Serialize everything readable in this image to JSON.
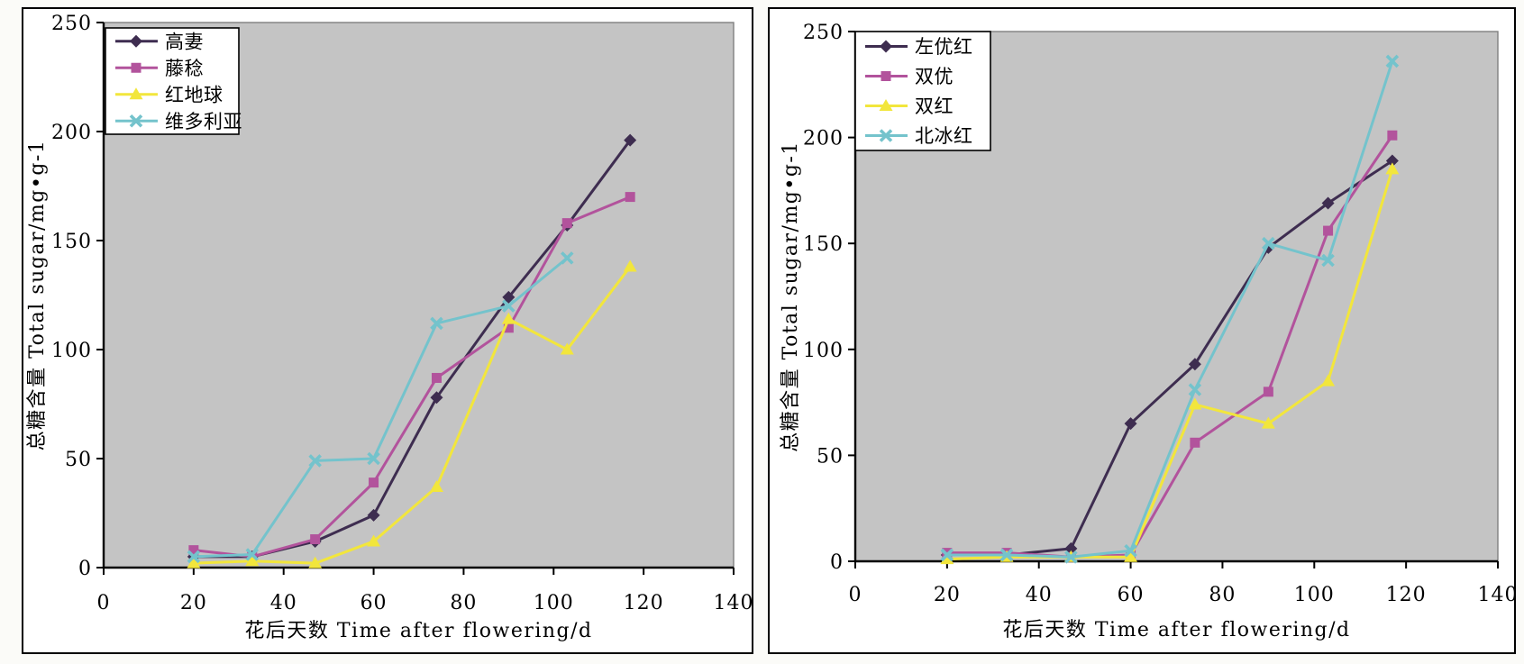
{
  "page": {
    "background": "#FBFBF8",
    "panel_border_color": "#000000",
    "panel_background": "#FFFFFF"
  },
  "chart_data": [
    {
      "type": "line",
      "panel": "left",
      "title": "",
      "xlabel": "花后天数 Time after flowering/d",
      "ylabel": "总糖含量 Total sugar/mg•g-1",
      "xlim": [
        0,
        140
      ],
      "ylim": [
        0,
        250
      ],
      "x_ticks": [
        0,
        20,
        40,
        60,
        80,
        100,
        120,
        140
      ],
      "y_ticks": [
        0,
        50,
        100,
        150,
        200,
        250
      ],
      "grid": false,
      "legend_position": "top-left",
      "plot_bg": "#C4C4C4",
      "plot_border_color": "#7F7F7F",
      "axis_color": "#000000",
      "x": [
        20,
        33,
        47,
        60,
        74,
        90,
        103,
        117
      ],
      "series": [
        {
          "name": "高妻",
          "marker": "diamond",
          "color": "#3E2D50",
          "values": [
            5,
            5,
            12,
            24,
            78,
            124,
            157,
            196
          ]
        },
        {
          "name": "藤稔",
          "marker": "square",
          "color": "#B2539C",
          "values": [
            8,
            5,
            13,
            39,
            87,
            110,
            158,
            170
          ]
        },
        {
          "name": "红地球",
          "marker": "triangle",
          "color": "#F2E63C",
          "values": [
            2,
            3,
            2,
            12,
            37,
            114,
            100,
            138
          ]
        },
        {
          "name": "维多利亚",
          "marker": "x",
          "color": "#74C3CC",
          "values": [
            5,
            6,
            49,
            50,
            112,
            120,
            142,
            null
          ]
        }
      ]
    },
    {
      "type": "line",
      "panel": "right",
      "title": "",
      "xlabel": "花后天数  Time after flowering/d",
      "ylabel": "总糖含量 Total sugar/mg•g-1",
      "xlim": [
        0,
        140
      ],
      "ylim": [
        0,
        250
      ],
      "x_ticks": [
        0,
        20,
        40,
        60,
        80,
        100,
        120,
        140
      ],
      "y_ticks": [
        0,
        50,
        100,
        150,
        200,
        250
      ],
      "grid": false,
      "legend_position": "top-left",
      "plot_bg": "#C4C4C4",
      "plot_border_color": "#7F7F7F",
      "axis_color": "#000000",
      "x": [
        20,
        33,
        47,
        60,
        74,
        90,
        103,
        117
      ],
      "series": [
        {
          "name": "左优红",
          "marker": "diamond",
          "color": "#3E2D50",
          "values": [
            3,
            3,
            6,
            65,
            93,
            148,
            169,
            189
          ]
        },
        {
          "name": "双优",
          "marker": "square",
          "color": "#B2539C",
          "values": [
            4,
            4,
            2,
            3,
            56,
            80,
            156,
            201
          ]
        },
        {
          "name": "双红",
          "marker": "triangle",
          "color": "#F2E63C",
          "values": [
            1,
            2,
            2,
            2,
            74,
            65,
            85,
            185
          ]
        },
        {
          "name": "北冰红",
          "marker": "x",
          "color": "#74C3CC",
          "values": [
            3,
            3,
            2,
            5,
            81,
            150,
            142,
            236
          ]
        }
      ]
    }
  ]
}
